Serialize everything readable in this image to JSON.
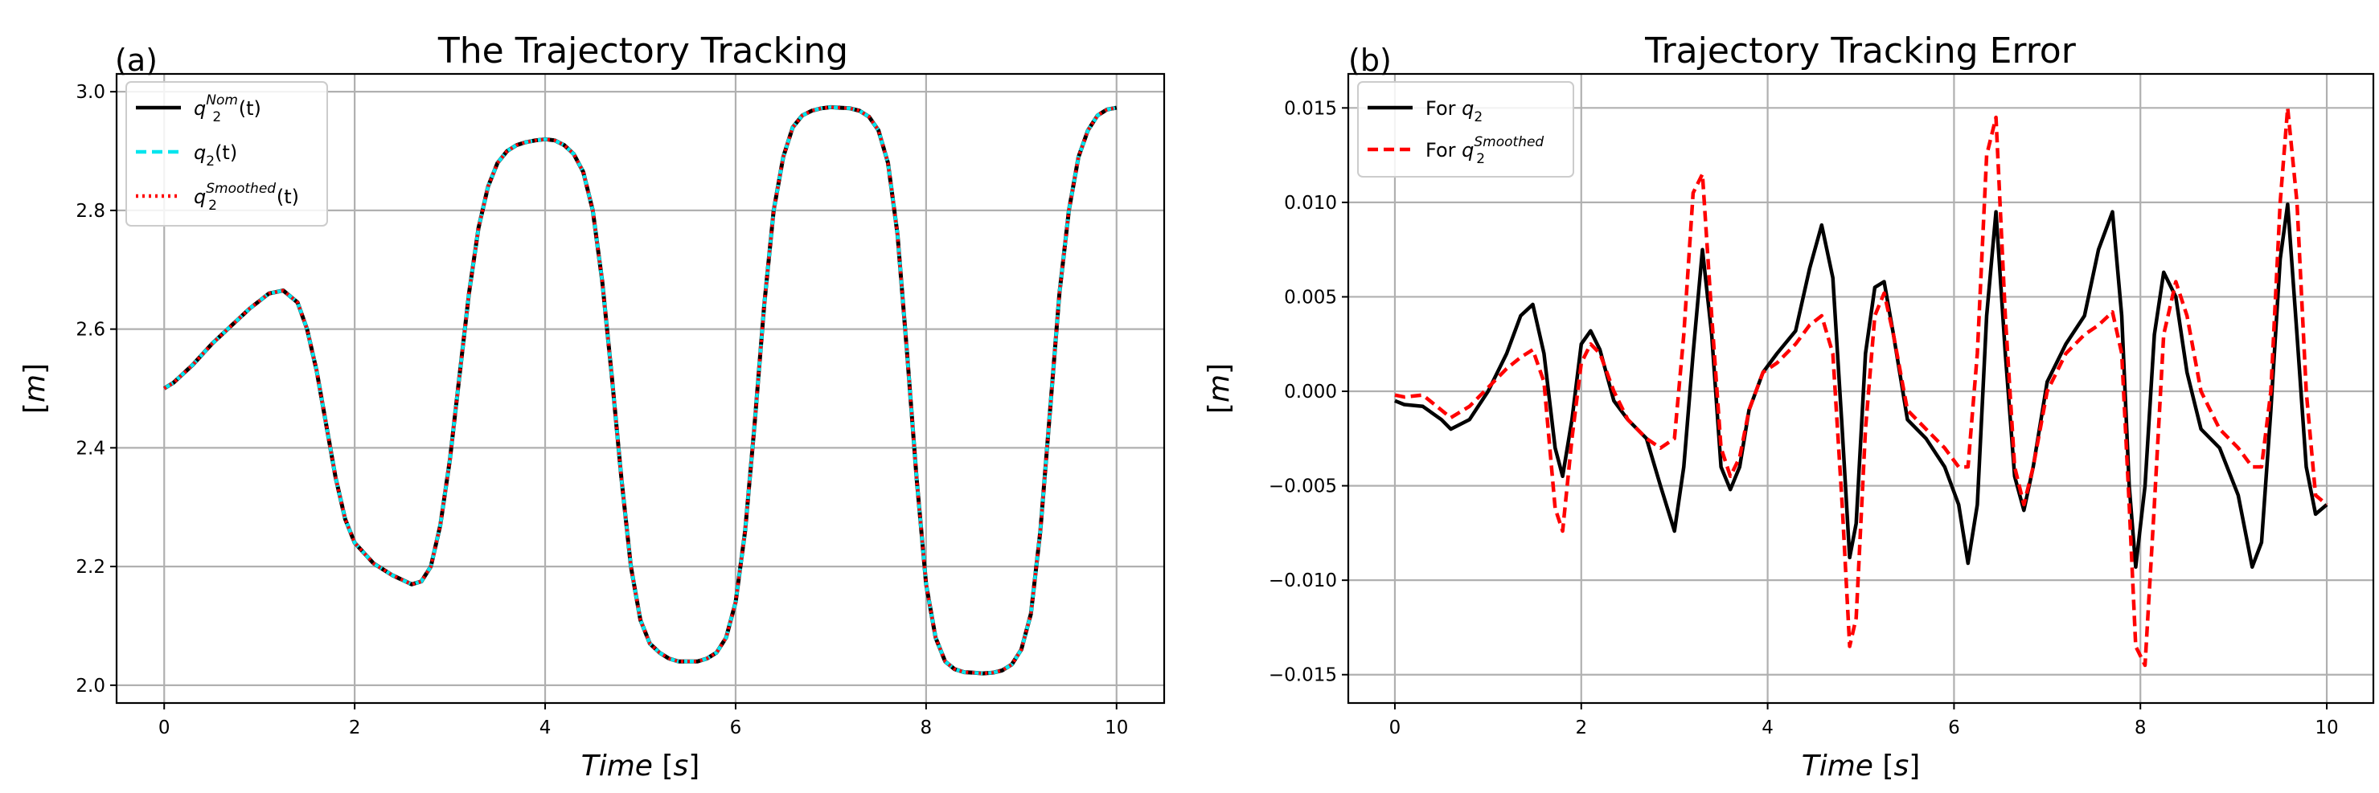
{
  "chart_data": [
    {
      "type": "line",
      "panel_label": "(a)",
      "title": "The Trajectory Tracking",
      "xlabel": "Time [s]",
      "ylabel": "[m]",
      "xlim": [
        -0.5,
        10.5
      ],
      "ylim": [
        1.97,
        3.03
      ],
      "xticks": [
        0,
        2,
        4,
        6,
        8,
        10
      ],
      "yticks": [
        2.0,
        2.2,
        2.4,
        2.6,
        2.8,
        3.0
      ],
      "xtick_labels": [
        "0",
        "2",
        "4",
        "6",
        "8",
        "10"
      ],
      "ytick_labels": [
        "2.0",
        "2.2",
        "2.4",
        "2.6",
        "2.8",
        "3.0"
      ],
      "grid": true,
      "legend": {
        "position": "top-left",
        "entries": [
          {
            "base": "q",
            "sub": "2",
            "sup": "Nom",
            "suffix": "(t)",
            "color": "#000000",
            "style": "solid"
          },
          {
            "base": "q",
            "sub": "2",
            "sup": "",
            "suffix": "(t)",
            "color": "#00e5ee",
            "style": "dashed"
          },
          {
            "base": "q",
            "sub": "2",
            "sup": "Smoothed",
            "suffix": "(t)",
            "color": "#ff0000",
            "style": "dotted"
          }
        ]
      },
      "series": [
        {
          "name": "q2 Nom(t)",
          "color": "#000000",
          "style": "solid",
          "x": [
            0,
            0.1,
            0.3,
            0.5,
            0.7,
            0.9,
            1.1,
            1.25,
            1.4,
            1.5,
            1.6,
            1.7,
            1.8,
            1.9,
            2.0,
            2.2,
            2.4,
            2.6,
            2.7,
            2.8,
            2.9,
            3.0,
            3.1,
            3.2,
            3.3,
            3.4,
            3.5,
            3.6,
            3.7,
            3.8,
            3.9,
            4.0,
            4.1,
            4.2,
            4.3,
            4.4,
            4.5,
            4.6,
            4.7,
            4.8,
            4.9,
            5.0,
            5.1,
            5.2,
            5.3,
            5.4,
            5.5,
            5.6,
            5.7,
            5.8,
            5.9,
            6.0,
            6.1,
            6.2,
            6.3,
            6.4,
            6.5,
            6.6,
            6.7,
            6.8,
            6.9,
            7.0,
            7.1,
            7.2,
            7.3,
            7.4,
            7.5,
            7.6,
            7.7,
            7.8,
            7.9,
            8.0,
            8.1,
            8.2,
            8.3,
            8.4,
            8.5,
            8.6,
            8.7,
            8.8,
            8.9,
            9.0,
            9.1,
            9.2,
            9.3,
            9.4,
            9.5,
            9.6,
            9.7,
            9.8,
            9.9,
            10.0
          ],
          "values": [
            2.5,
            2.51,
            2.54,
            2.575,
            2.605,
            2.635,
            2.66,
            2.665,
            2.645,
            2.6,
            2.53,
            2.44,
            2.35,
            2.28,
            2.24,
            2.205,
            2.185,
            2.17,
            2.175,
            2.2,
            2.27,
            2.38,
            2.52,
            2.66,
            2.77,
            2.84,
            2.88,
            2.9,
            2.91,
            2.915,
            2.918,
            2.92,
            2.918,
            2.91,
            2.895,
            2.865,
            2.8,
            2.68,
            2.52,
            2.35,
            2.2,
            2.11,
            2.07,
            2.055,
            2.045,
            2.04,
            2.04,
            2.04,
            2.045,
            2.055,
            2.08,
            2.14,
            2.26,
            2.44,
            2.64,
            2.8,
            2.89,
            2.94,
            2.96,
            2.968,
            2.972,
            2.974,
            2.973,
            2.972,
            2.968,
            2.958,
            2.935,
            2.88,
            2.76,
            2.56,
            2.35,
            2.17,
            2.08,
            2.04,
            2.027,
            2.022,
            2.021,
            2.02,
            2.021,
            2.025,
            2.035,
            2.06,
            2.12,
            2.26,
            2.46,
            2.66,
            2.8,
            2.89,
            2.935,
            2.96,
            2.97,
            2.973
          ]
        },
        {
          "name": "q2(t)",
          "color": "#00e5ee",
          "style": "dashed",
          "x": [
            0,
            0.1,
            0.3,
            0.5,
            0.7,
            0.9,
            1.1,
            1.25,
            1.4,
            1.5,
            1.6,
            1.7,
            1.8,
            1.9,
            2.0,
            2.2,
            2.4,
            2.6,
            2.7,
            2.8,
            2.9,
            3.0,
            3.1,
            3.2,
            3.3,
            3.4,
            3.5,
            3.6,
            3.7,
            3.8,
            3.9,
            4.0,
            4.1,
            4.2,
            4.3,
            4.4,
            4.5,
            4.6,
            4.7,
            4.8,
            4.9,
            5.0,
            5.1,
            5.2,
            5.3,
            5.4,
            5.5,
            5.6,
            5.7,
            5.8,
            5.9,
            6.0,
            6.1,
            6.2,
            6.3,
            6.4,
            6.5,
            6.6,
            6.7,
            6.8,
            6.9,
            7.0,
            7.1,
            7.2,
            7.3,
            7.4,
            7.5,
            7.6,
            7.7,
            7.8,
            7.9,
            8.0,
            8.1,
            8.2,
            8.3,
            8.4,
            8.5,
            8.6,
            8.7,
            8.8,
            8.9,
            9.0,
            9.1,
            9.2,
            9.3,
            9.4,
            9.5,
            9.6,
            9.7,
            9.8,
            9.9,
            10.0
          ],
          "values": [
            2.5,
            2.51,
            2.54,
            2.575,
            2.605,
            2.635,
            2.66,
            2.665,
            2.645,
            2.6,
            2.53,
            2.44,
            2.35,
            2.28,
            2.24,
            2.205,
            2.185,
            2.17,
            2.175,
            2.2,
            2.27,
            2.38,
            2.52,
            2.66,
            2.77,
            2.84,
            2.88,
            2.9,
            2.91,
            2.915,
            2.918,
            2.92,
            2.918,
            2.91,
            2.895,
            2.865,
            2.8,
            2.68,
            2.52,
            2.35,
            2.2,
            2.11,
            2.07,
            2.055,
            2.045,
            2.04,
            2.04,
            2.04,
            2.045,
            2.055,
            2.08,
            2.14,
            2.26,
            2.44,
            2.64,
            2.8,
            2.89,
            2.94,
            2.96,
            2.968,
            2.972,
            2.974,
            2.973,
            2.972,
            2.968,
            2.958,
            2.935,
            2.88,
            2.76,
            2.56,
            2.35,
            2.17,
            2.08,
            2.04,
            2.027,
            2.022,
            2.021,
            2.02,
            2.021,
            2.025,
            2.035,
            2.06,
            2.12,
            2.26,
            2.46,
            2.66,
            2.8,
            2.89,
            2.935,
            2.96,
            2.97,
            2.973
          ]
        },
        {
          "name": "q2 Smoothed(t)",
          "color": "#ff0000",
          "style": "dotted",
          "x": [
            0,
            0.1,
            0.3,
            0.5,
            0.7,
            0.9,
            1.1,
            1.25,
            1.4,
            1.5,
            1.6,
            1.7,
            1.8,
            1.9,
            2.0,
            2.2,
            2.4,
            2.6,
            2.7,
            2.8,
            2.9,
            3.0,
            3.1,
            3.2,
            3.3,
            3.4,
            3.5,
            3.6,
            3.7,
            3.8,
            3.9,
            4.0,
            4.1,
            4.2,
            4.3,
            4.4,
            4.5,
            4.6,
            4.7,
            4.8,
            4.9,
            5.0,
            5.1,
            5.2,
            5.3,
            5.4,
            5.5,
            5.6,
            5.7,
            5.8,
            5.9,
            6.0,
            6.1,
            6.2,
            6.3,
            6.4,
            6.5,
            6.6,
            6.7,
            6.8,
            6.9,
            7.0,
            7.1,
            7.2,
            7.3,
            7.4,
            7.5,
            7.6,
            7.7,
            7.8,
            7.9,
            8.0,
            8.1,
            8.2,
            8.3,
            8.4,
            8.5,
            8.6,
            8.7,
            8.8,
            8.9,
            9.0,
            9.1,
            9.2,
            9.3,
            9.4,
            9.5,
            9.6,
            9.7,
            9.8,
            9.9,
            10.0
          ],
          "values": [
            2.5,
            2.51,
            2.54,
            2.575,
            2.605,
            2.635,
            2.66,
            2.665,
            2.645,
            2.6,
            2.53,
            2.44,
            2.35,
            2.28,
            2.24,
            2.205,
            2.185,
            2.17,
            2.175,
            2.2,
            2.27,
            2.38,
            2.52,
            2.66,
            2.77,
            2.84,
            2.88,
            2.9,
            2.91,
            2.915,
            2.918,
            2.92,
            2.918,
            2.91,
            2.895,
            2.865,
            2.8,
            2.68,
            2.52,
            2.35,
            2.2,
            2.11,
            2.07,
            2.055,
            2.045,
            2.04,
            2.04,
            2.04,
            2.045,
            2.055,
            2.08,
            2.14,
            2.26,
            2.44,
            2.64,
            2.8,
            2.89,
            2.94,
            2.96,
            2.968,
            2.972,
            2.974,
            2.973,
            2.972,
            2.968,
            2.958,
            2.935,
            2.88,
            2.76,
            2.56,
            2.35,
            2.17,
            2.08,
            2.04,
            2.027,
            2.022,
            2.021,
            2.02,
            2.021,
            2.025,
            2.035,
            2.06,
            2.12,
            2.26,
            2.46,
            2.66,
            2.8,
            2.89,
            2.935,
            2.96,
            2.97,
            2.973
          ]
        }
      ]
    },
    {
      "type": "line",
      "panel_label": "(b)",
      "title": "Trajectory Tracking Error",
      "xlabel": "Time [s]",
      "ylabel": "[m]",
      "xlim": [
        -0.5,
        10.5
      ],
      "ylim": [
        -0.0165,
        0.0168
      ],
      "xticks": [
        0,
        2,
        4,
        6,
        8,
        10
      ],
      "yticks": [
        -0.015,
        -0.01,
        -0.005,
        0.0,
        0.005,
        0.01,
        0.015
      ],
      "xtick_labels": [
        "0",
        "2",
        "4",
        "6",
        "8",
        "10"
      ],
      "ytick_labels": [
        "−0.015",
        "−0.010",
        "−0.005",
        "0.000",
        "0.005",
        "0.010",
        "0.015"
      ],
      "grid": true,
      "legend": {
        "position": "top-left",
        "entries": [
          {
            "prefix": "For ",
            "base": "q",
            "sub": "2",
            "sup": "",
            "suffix": "",
            "color": "#000000",
            "style": "solid"
          },
          {
            "prefix": "For ",
            "base": "q",
            "sub": "2",
            "sup": "Smoothed",
            "suffix": "",
            "color": "#ff0000",
            "style": "dashed"
          }
        ]
      },
      "series": [
        {
          "name": "For q2",
          "color": "#000000",
          "style": "solid",
          "x": [
            0,
            0.1,
            0.3,
            0.5,
            0.6,
            0.8,
            1.0,
            1.2,
            1.35,
            1.48,
            1.6,
            1.72,
            1.8,
            1.9,
            2.0,
            2.1,
            2.2,
            2.35,
            2.5,
            2.7,
            2.85,
            3.0,
            3.1,
            3.2,
            3.3,
            3.4,
            3.5,
            3.6,
            3.7,
            3.8,
            3.95,
            4.1,
            4.3,
            4.45,
            4.58,
            4.7,
            4.8,
            4.88,
            4.95,
            5.05,
            5.15,
            5.25,
            5.35,
            5.5,
            5.7,
            5.9,
            6.05,
            6.15,
            6.25,
            6.35,
            6.45,
            6.55,
            6.65,
            6.75,
            6.85,
            7.0,
            7.2,
            7.4,
            7.55,
            7.7,
            7.8,
            7.88,
            7.95,
            8.05,
            8.15,
            8.25,
            8.38,
            8.5,
            8.65,
            8.85,
            9.05,
            9.2,
            9.3,
            9.4,
            9.5,
            9.58,
            9.68,
            9.78,
            9.88,
            10.0
          ],
          "values": [
            -0.0005,
            -0.0007,
            -0.0008,
            -0.0015,
            -0.002,
            -0.0015,
            0.0,
            0.002,
            0.004,
            0.0046,
            0.002,
            -0.003,
            -0.0045,
            -0.0015,
            0.0025,
            0.0032,
            0.0022,
            -0.0005,
            -0.0015,
            -0.0025,
            -0.005,
            -0.0074,
            -0.004,
            0.002,
            0.0075,
            0.003,
            -0.004,
            -0.0052,
            -0.004,
            -0.001,
            0.001,
            0.002,
            0.0032,
            0.0065,
            0.0088,
            0.006,
            -0.002,
            -0.0088,
            -0.007,
            0.002,
            0.0055,
            0.0058,
            0.003,
            -0.0015,
            -0.0025,
            -0.004,
            -0.006,
            -0.0091,
            -0.006,
            0.004,
            0.0095,
            0.002,
            -0.0045,
            -0.0063,
            -0.004,
            0.0005,
            0.0025,
            0.004,
            0.0075,
            0.0095,
            0.004,
            -0.005,
            -0.0093,
            -0.005,
            0.003,
            0.0063,
            0.005,
            0.001,
            -0.002,
            -0.003,
            -0.0055,
            -0.0093,
            -0.008,
            -0.001,
            0.007,
            0.0099,
            0.003,
            -0.004,
            -0.0065,
            -0.006
          ]
        },
        {
          "name": "For q2 Smoothed",
          "color": "#ff0000",
          "style": "dashed",
          "x": [
            0,
            0.1,
            0.3,
            0.5,
            0.6,
            0.8,
            1.0,
            1.2,
            1.35,
            1.48,
            1.6,
            1.72,
            1.8,
            1.9,
            2.0,
            2.1,
            2.2,
            2.35,
            2.5,
            2.7,
            2.85,
            3.0,
            3.1,
            3.2,
            3.3,
            3.4,
            3.5,
            3.6,
            3.7,
            3.8,
            3.95,
            4.1,
            4.3,
            4.45,
            4.58,
            4.7,
            4.8,
            4.88,
            4.95,
            5.05,
            5.15,
            5.25,
            5.35,
            5.5,
            5.7,
            5.9,
            6.05,
            6.15,
            6.25,
            6.35,
            6.45,
            6.55,
            6.65,
            6.75,
            6.85,
            7.0,
            7.2,
            7.4,
            7.55,
            7.7,
            7.8,
            7.88,
            7.95,
            8.05,
            8.15,
            8.25,
            8.38,
            8.5,
            8.65,
            8.85,
            9.05,
            9.2,
            9.3,
            9.4,
            9.5,
            9.58,
            9.68,
            9.78,
            9.88,
            10.0
          ],
          "values": [
            -0.0002,
            -0.0003,
            -0.0002,
            -0.001,
            -0.0014,
            -0.0008,
            0.0002,
            0.0012,
            0.0018,
            0.0022,
            0.0005,
            -0.0062,
            -0.0074,
            -0.0025,
            0.0015,
            0.0025,
            0.002,
            0.0,
            -0.0015,
            -0.0025,
            -0.003,
            -0.0025,
            0.003,
            0.0105,
            0.0115,
            0.004,
            -0.003,
            -0.0045,
            -0.0035,
            -0.001,
            0.001,
            0.0015,
            0.0025,
            0.0035,
            0.004,
            0.002,
            -0.006,
            -0.0135,
            -0.012,
            -0.002,
            0.004,
            0.0052,
            0.003,
            -0.001,
            -0.002,
            -0.003,
            -0.004,
            -0.004,
            0.002,
            0.0125,
            0.0145,
            0.004,
            -0.004,
            -0.006,
            -0.004,
            0.0,
            0.002,
            0.003,
            0.0035,
            0.0042,
            0.002,
            -0.006,
            -0.0135,
            -0.0145,
            -0.006,
            0.003,
            0.0058,
            0.004,
            0.0,
            -0.002,
            -0.003,
            -0.004,
            -0.004,
            0.0,
            0.01,
            0.015,
            0.01,
            0.0,
            -0.0055,
            -0.006
          ]
        }
      ]
    }
  ]
}
